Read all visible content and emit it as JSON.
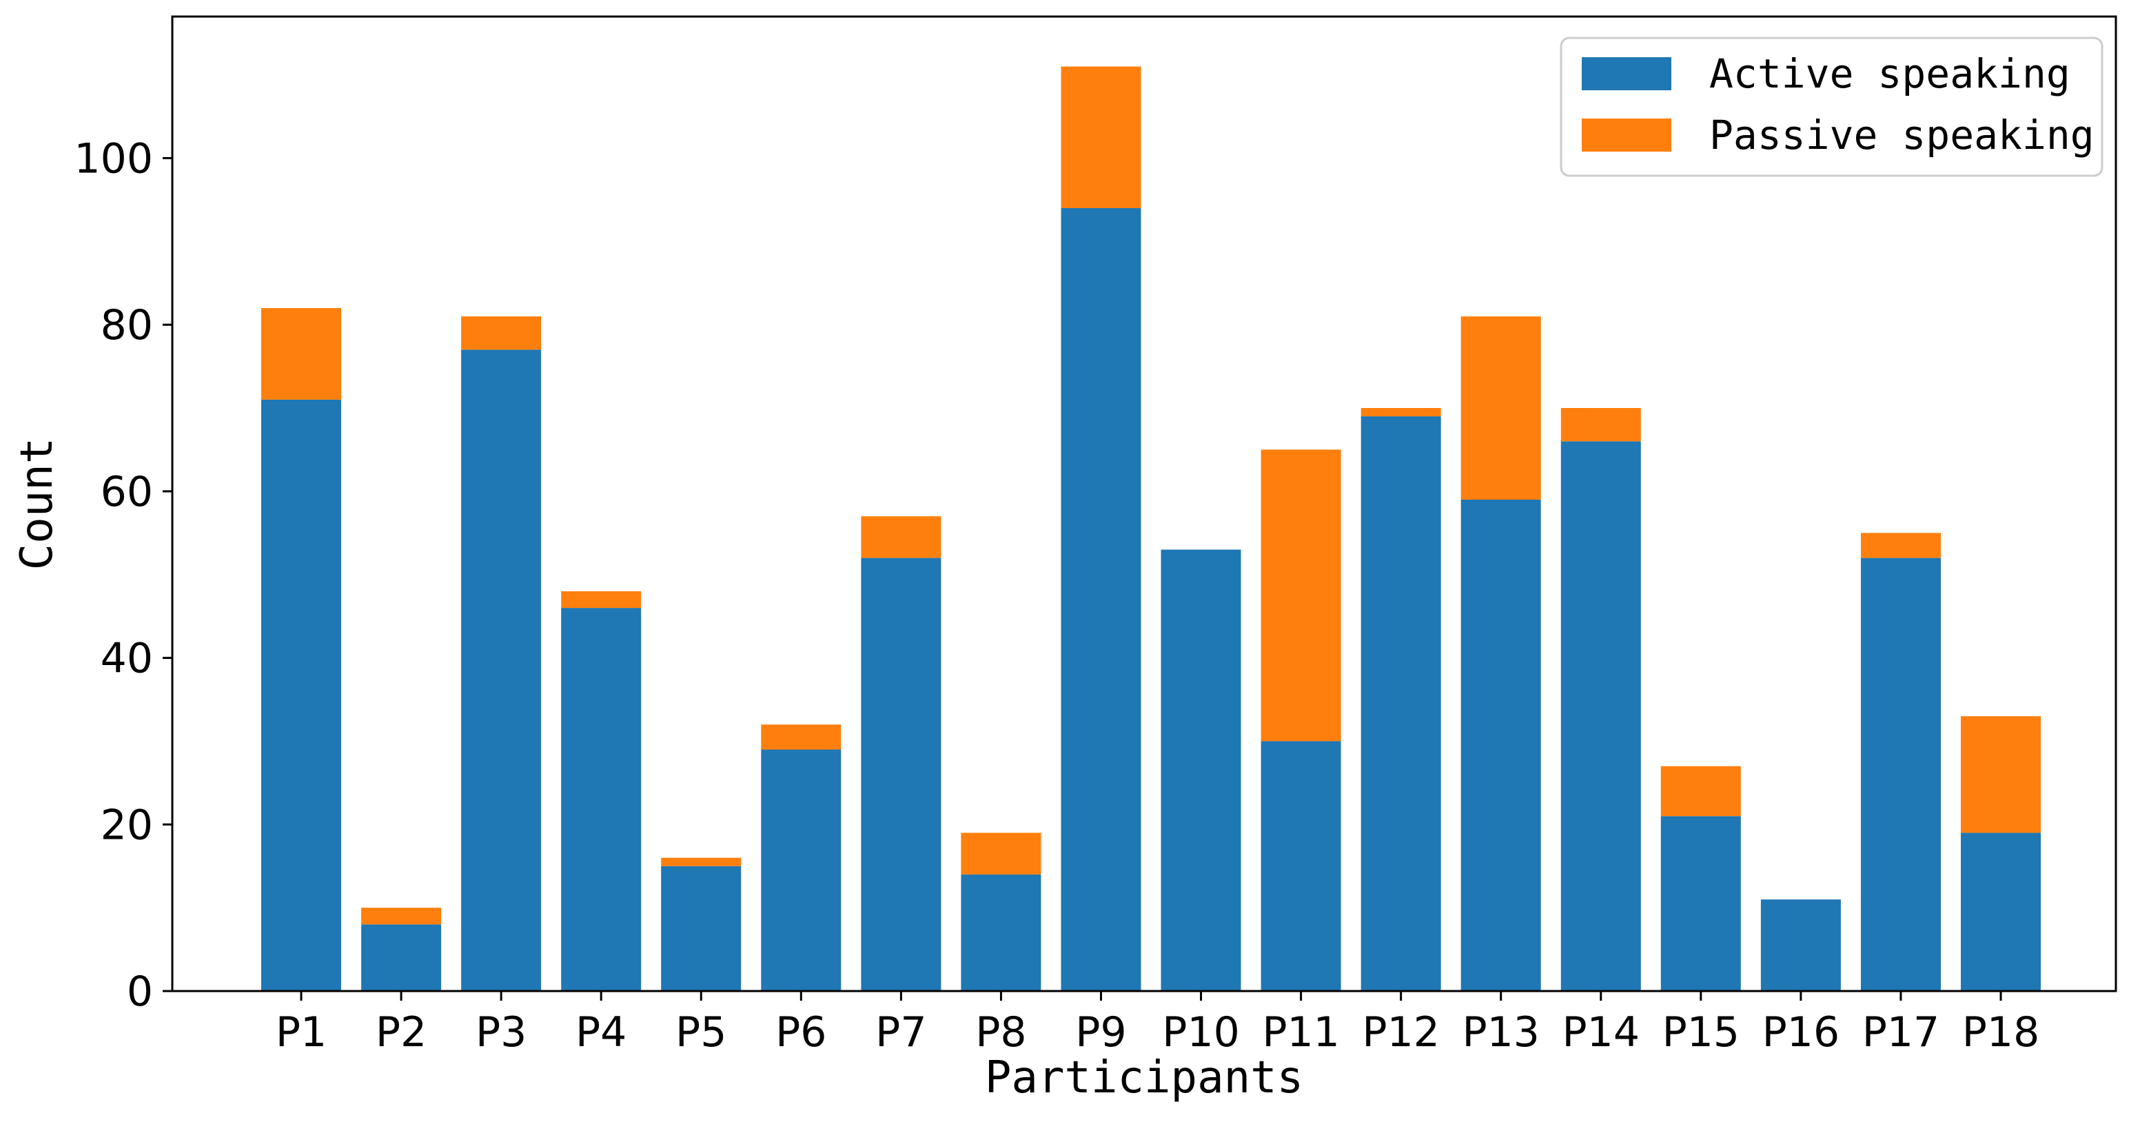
{
  "chart_data": {
    "type": "bar",
    "stacked": true,
    "title": "",
    "xlabel": "Participants",
    "ylabel": "Count",
    "ylim": [
      0,
      117
    ],
    "yticks": [
      0,
      20,
      40,
      60,
      80,
      100
    ],
    "categories": [
      "P1",
      "P2",
      "P3",
      "P4",
      "P5",
      "P6",
      "P7",
      "P8",
      "P9",
      "P10",
      "P11",
      "P12",
      "P13",
      "P14",
      "P15",
      "P16",
      "P17",
      "P18"
    ],
    "series": [
      {
        "name": "Active speaking",
        "color": "#1f77b4",
        "values": [
          71,
          8,
          77,
          46,
          15,
          29,
          52,
          14,
          94,
          53,
          30,
          69,
          59,
          66,
          21,
          11,
          52,
          19
        ]
      },
      {
        "name": "Passive speaking",
        "color": "#ff7f0e",
        "values": [
          11,
          2,
          4,
          2,
          1,
          3,
          5,
          5,
          17,
          0,
          35,
          1,
          22,
          4,
          6,
          0,
          3,
          14
        ]
      }
    ],
    "legend_position": "top-right",
    "grid": false
  }
}
